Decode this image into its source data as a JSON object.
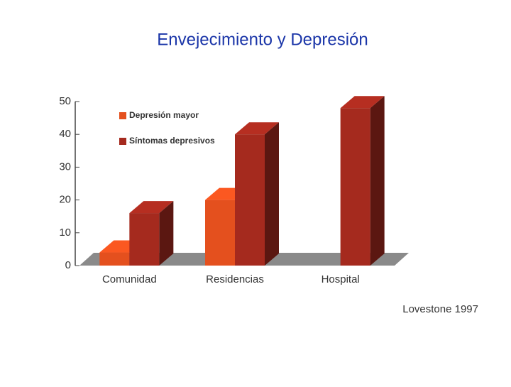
{
  "chart_data": {
    "type": "bar",
    "title": "Envejecimiento y Depresión",
    "categories": [
      "Comunidad",
      "Residencias",
      "Hospital"
    ],
    "series": [
      {
        "name": "Depresión mayor",
        "color": "#e4501e",
        "values": [
          4,
          20,
          null
        ]
      },
      {
        "name": "Síntomas depresivos",
        "color": "#a52a1e",
        "values": [
          16,
          40,
          48
        ]
      }
    ],
    "ylim": [
      0,
      50
    ],
    "yticks": [
      0,
      10,
      20,
      30,
      40,
      50
    ],
    "annotation": "Lovestone 1997"
  }
}
